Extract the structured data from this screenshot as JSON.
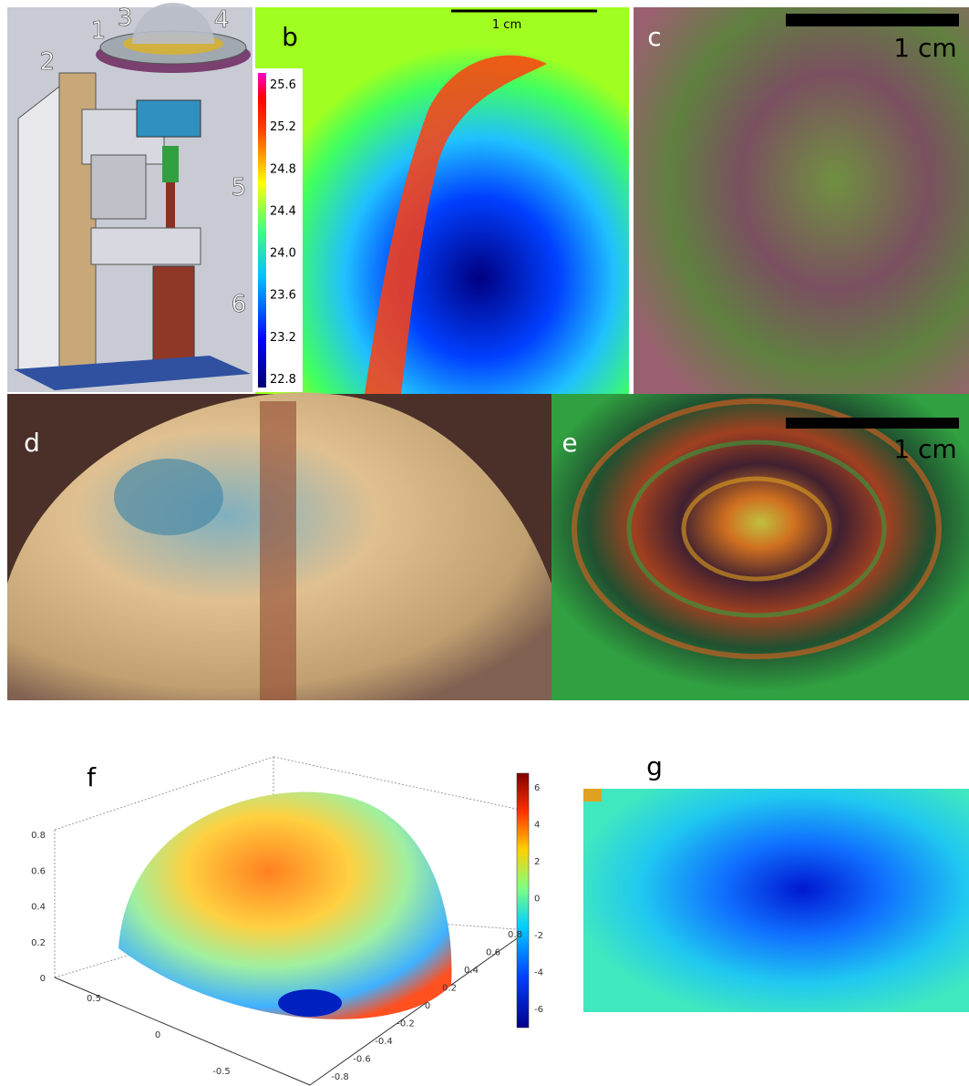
{
  "panels": {
    "a": {
      "callouts": [
        "1",
        "2",
        "3",
        "4",
        "5",
        "6"
      ]
    },
    "b": {
      "label": "b",
      "scale_bar": "1 cm",
      "colorbar_ticks": [
        "25.6",
        "25.2",
        "24.8",
        "24.4",
        "24.0",
        "23.6",
        "23.2",
        "22.8"
      ]
    },
    "c": {
      "label": "c",
      "scale_bar": "1 cm"
    },
    "d": {
      "label": "d"
    },
    "e": {
      "label": "e",
      "scale_bar": "1 cm"
    },
    "f": {
      "label": "f",
      "z_ticks": [
        "0.8",
        "0.6",
        "0.4",
        "0.2",
        "0"
      ],
      "x_ticks": [
        "0.5",
        "0",
        "-0.5"
      ],
      "y_ticks": [
        "0.8",
        "0.6",
        "0.4",
        "0.2",
        "0",
        "-0.2",
        "-0.4",
        "-0.6",
        "-0.8"
      ],
      "colorbar_ticks": [
        "6",
        "4",
        "2",
        "0",
        "-2",
        "-4",
        "-6"
      ]
    },
    "g": {
      "label": "g"
    }
  }
}
